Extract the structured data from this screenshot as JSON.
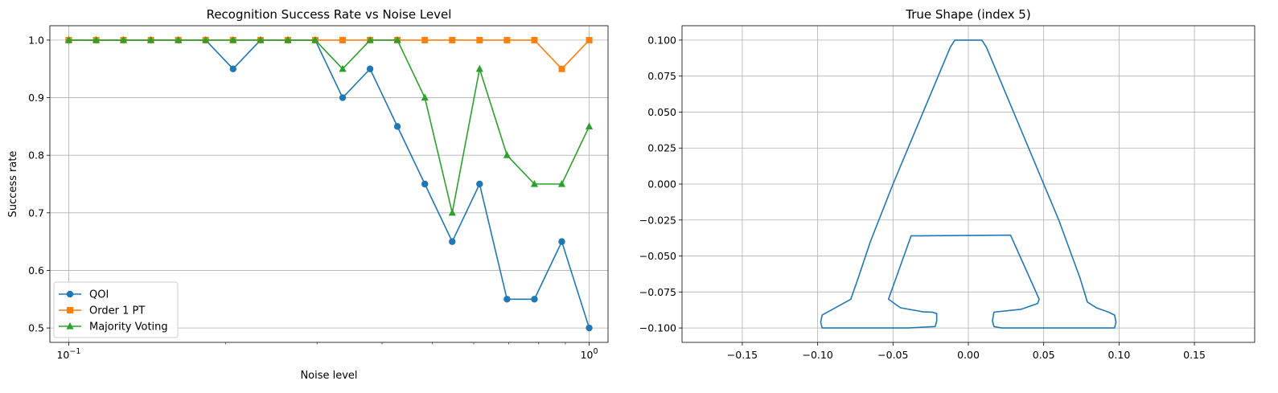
{
  "chart_data": [
    {
      "type": "line",
      "title": "Recognition Success Rate vs Noise Level",
      "xlabel": "Noise level",
      "ylabel": "Success rate",
      "xscale": "log",
      "xlim": [
        0.092,
        1.087
      ],
      "ylim": [
        0.475,
        1.025
      ],
      "x_ticks": [
        {
          "value": 0.1,
          "base": "10",
          "exp": "−1"
        },
        {
          "value": 1.0,
          "base": "10",
          "exp": "0"
        }
      ],
      "y_ticks": [
        "0.5",
        "0.6",
        "0.7",
        "0.8",
        "0.9",
        "1.0"
      ],
      "y_tick_values": [
        0.5,
        0.6,
        0.7,
        0.8,
        0.9,
        1.0
      ],
      "grid": true,
      "legend": "lower-left",
      "x": [
        0.1,
        0.1129,
        0.1274,
        0.1438,
        0.1624,
        0.1833,
        0.2069,
        0.2336,
        0.2637,
        0.2976,
        0.336,
        0.3793,
        0.4281,
        0.4833,
        0.5456,
        0.6158,
        0.6952,
        0.7848,
        0.8859,
        1.0
      ],
      "series": [
        {
          "name": "QOI",
          "color": "#1f77b4",
          "marker": "circle",
          "values": [
            1.0,
            1.0,
            1.0,
            1.0,
            1.0,
            1.0,
            0.95,
            1.0,
            1.0,
            1.0,
            0.9,
            0.95,
            0.85,
            0.75,
            0.65,
            0.75,
            0.55,
            0.55,
            0.65,
            0.5
          ]
        },
        {
          "name": "Order 1 PT",
          "color": "#ff7f0e",
          "marker": "square",
          "values": [
            1.0,
            1.0,
            1.0,
            1.0,
            1.0,
            1.0,
            1.0,
            1.0,
            1.0,
            1.0,
            1.0,
            1.0,
            1.0,
            1.0,
            1.0,
            1.0,
            1.0,
            1.0,
            0.95,
            1.0
          ]
        },
        {
          "name": "Majority Voting",
          "color": "#2ca02c",
          "marker": "triangle",
          "values": [
            1.0,
            1.0,
            1.0,
            1.0,
            1.0,
            1.0,
            1.0,
            1.0,
            1.0,
            1.0,
            0.95,
            1.0,
            1.0,
            0.9,
            0.7,
            0.95,
            0.8,
            0.75,
            0.75,
            0.85
          ]
        }
      ]
    },
    {
      "type": "line",
      "title": "True Shape (index 5)",
      "xlabel": "",
      "ylabel": "",
      "xlim": [
        -0.19,
        0.19
      ],
      "ylim": [
        -0.11,
        0.11
      ],
      "x_ticks": [
        "−0.15",
        "−0.10",
        "−0.05",
        "0.00",
        "0.05",
        "0.10",
        "0.15"
      ],
      "x_tick_values": [
        -0.15,
        -0.1,
        -0.05,
        0.0,
        0.05,
        0.1,
        0.15
      ],
      "y_ticks": [
        "−0.100",
        "−0.075",
        "−0.050",
        "−0.025",
        "0.000",
        "0.025",
        "0.050",
        "0.075",
        "0.100"
      ],
      "y_tick_values": [
        -0.1,
        -0.075,
        -0.05,
        -0.025,
        0.0,
        0.025,
        0.05,
        0.075,
        0.1
      ],
      "grid": true,
      "series": [
        {
          "color": "#1f77b4",
          "x": [
            -0.007,
            -0.009,
            -0.012,
            -0.03,
            -0.05,
            -0.065,
            -0.073,
            -0.078,
            -0.09,
            -0.097,
            -0.098,
            -0.097,
            -0.08,
            -0.06,
            -0.04,
            -0.022,
            -0.021,
            -0.021,
            -0.024,
            -0.03,
            -0.045,
            -0.053,
            -0.038,
            0.028,
            0.047,
            0.046,
            0.035,
            0.017,
            0.016,
            0.017,
            0.022,
            0.06,
            0.097,
            0.098,
            0.097,
            0.093,
            0.085,
            0.079,
            0.074,
            0.06,
            0.03,
            0.012,
            0.009,
            0.007,
            -0.007
          ],
          "y": [
            0.1,
            0.1,
            0.095,
            0.05,
            0.0,
            -0.04,
            -0.065,
            -0.08,
            -0.087,
            -0.091,
            -0.096,
            -0.1,
            -0.1,
            -0.1,
            -0.1,
            -0.099,
            -0.095,
            -0.09,
            -0.089,
            -0.0888,
            -0.086,
            -0.08,
            -0.036,
            -0.0355,
            -0.08,
            -0.083,
            -0.087,
            -0.089,
            -0.095,
            -0.099,
            -0.1,
            -0.1,
            -0.1,
            -0.096,
            -0.091,
            -0.089,
            -0.086,
            -0.082,
            -0.065,
            -0.025,
            0.05,
            0.095,
            0.1,
            0.1,
            0.1
          ]
        }
      ]
    }
  ]
}
